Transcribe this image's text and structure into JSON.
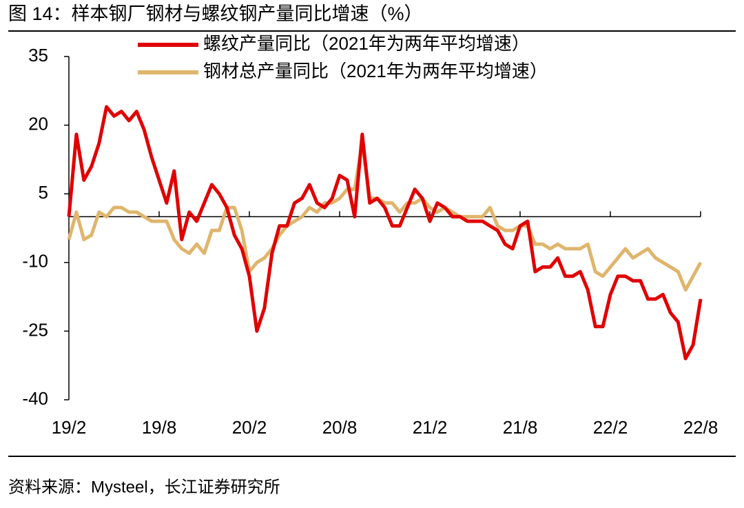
{
  "chart_data": {
    "type": "line",
    "title": "图 14：样本钢厂钢材与螺纹钢产量同比增速（%）",
    "source": "资料来源：Mysteel，长江证券研究所",
    "categories": [
      "19/2",
      null,
      null,
      null,
      null,
      null,
      null,
      null,
      null,
      null,
      null,
      null,
      "19/8",
      null,
      null,
      null,
      null,
      null,
      null,
      null,
      null,
      null,
      null,
      null,
      "20/2",
      null,
      null,
      null,
      null,
      null,
      null,
      null,
      null,
      null,
      null,
      null,
      "20/8",
      null,
      null,
      null,
      null,
      null,
      null,
      null,
      null,
      null,
      null,
      null,
      "21/2",
      null,
      null,
      null,
      null,
      null,
      null,
      null,
      null,
      null,
      null,
      null,
      "21/8",
      null,
      null,
      null,
      null,
      null,
      null,
      null,
      null,
      null,
      null,
      null,
      "22/2",
      null,
      null,
      null,
      null,
      null,
      null,
      null,
      null,
      null,
      null,
      null,
      "22/8"
    ],
    "series": [
      {
        "name": "螺纹产量同比（2021年为两年平均增速）",
        "color": "#e00000",
        "values": [
          0,
          18,
          8,
          11,
          16,
          24,
          22,
          23,
          21,
          23,
          19,
          13,
          8,
          3,
          10,
          -5,
          1,
          -1,
          3,
          7,
          5,
          2,
          -4,
          -7,
          -13,
          -25,
          -20,
          -8,
          -2,
          -2,
          3,
          4,
          7,
          3,
          2,
          4,
          9,
          8,
          0,
          18,
          3,
          4,
          2,
          -2,
          -2,
          2,
          6,
          4,
          -1,
          3,
          2,
          0,
          0,
          -1,
          -1,
          -1,
          -2,
          -3,
          -6,
          -7,
          -2,
          -1,
          -12,
          -11,
          -11,
          -9,
          -13,
          -13,
          -12,
          -16,
          -24,
          -24,
          -17,
          -13,
          -13,
          -14,
          -14,
          -18,
          -18,
          -17,
          -21,
          -23,
          -31,
          -28,
          -18
        ]
      },
      {
        "name": "钢材总产量同比（2021年为两年平均增速）",
        "color": "#dfb56d",
        "values": [
          -5,
          1,
          -5,
          -4,
          1,
          0,
          2,
          2,
          1,
          1,
          0,
          -1,
          -1,
          -1,
          -5,
          -7,
          -8,
          -6,
          -8,
          -3,
          -3,
          2,
          2,
          -3,
          -12,
          -10,
          -9,
          -7,
          -4,
          -2,
          -1,
          0,
          2,
          1,
          3,
          3,
          4,
          6,
          6,
          16,
          4,
          4,
          3,
          3,
          1,
          3,
          3,
          4,
          2,
          1,
          2,
          1,
          0,
          0,
          0,
          0,
          2,
          -2,
          -3,
          -3,
          -2,
          -2,
          -6,
          -6,
          -7,
          -6,
          -7,
          -7,
          -7,
          -6,
          -12,
          -13,
          -11,
          -9,
          -7,
          -9,
          -8,
          -7,
          -9,
          -10,
          -11,
          -12,
          -16,
          -13,
          -10
        ]
      }
    ],
    "ylim": [
      -40,
      35
    ],
    "yticks": [
      -40,
      -25,
      -10,
      5,
      20,
      35
    ],
    "grid": false
  }
}
